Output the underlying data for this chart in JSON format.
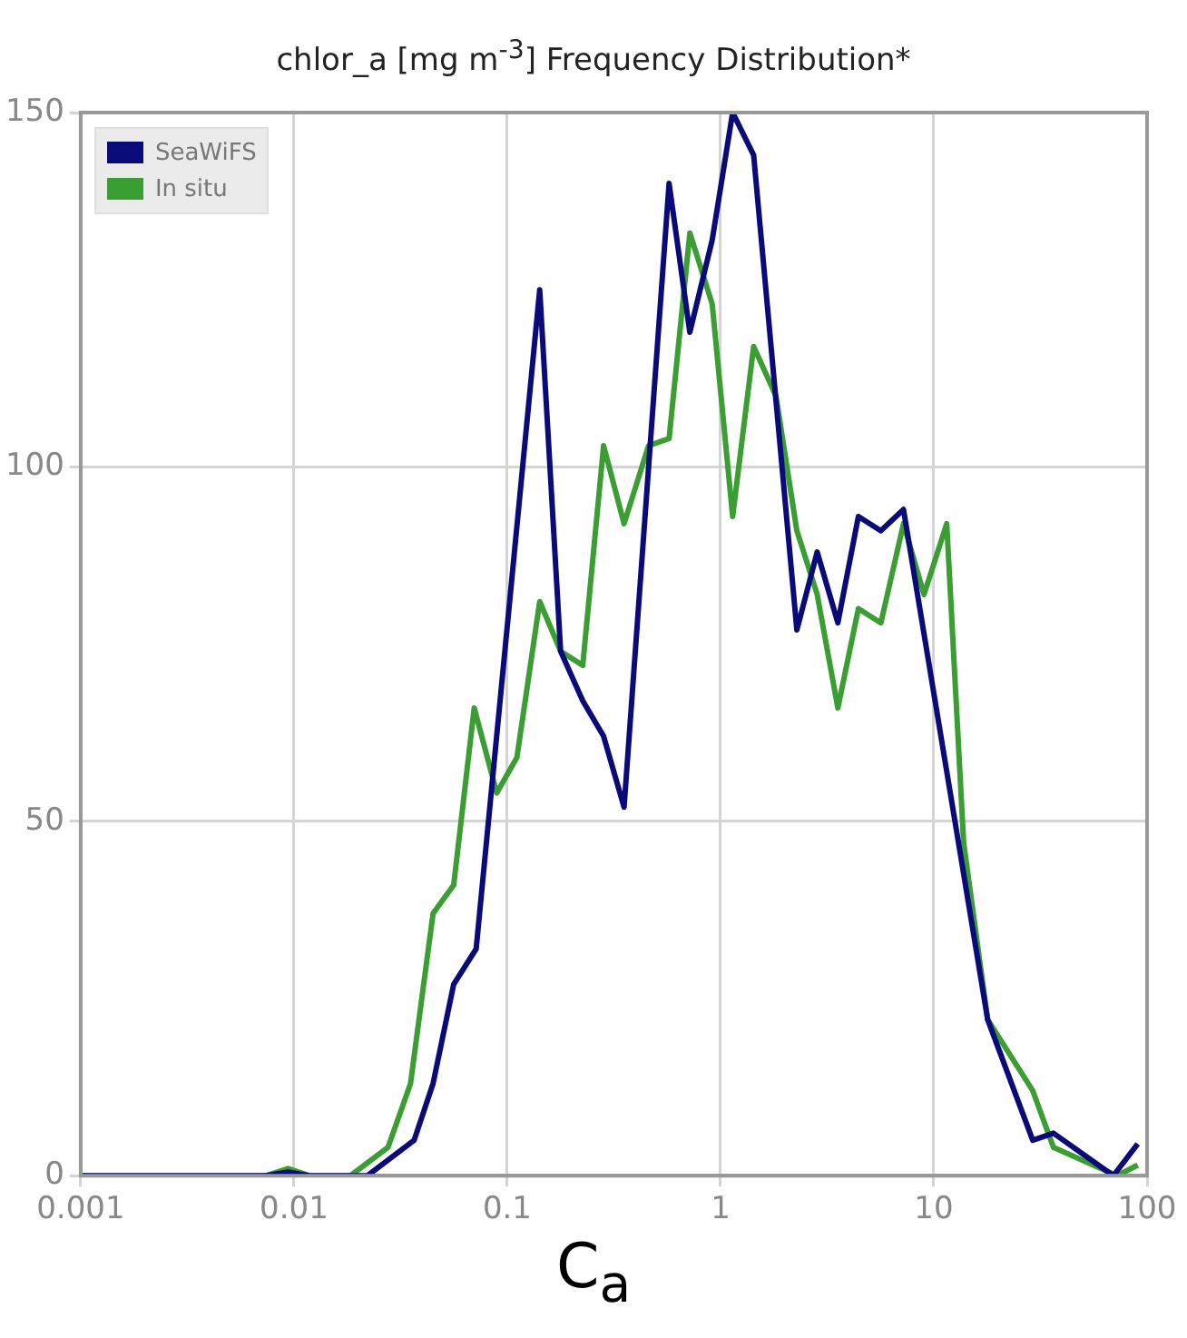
{
  "chart_data": {
    "type": "line",
    "title": "chlor_a [mg m$^{-3}$] Frequency Distribution*",
    "xlabel": "C$_{a}$",
    "log": "x",
    "xlim": [
      0.001,
      100
    ],
    "xticks": [
      0.001,
      0.01,
      0.1,
      1,
      10,
      100
    ],
    "ylim": [
      0,
      150
    ],
    "yticks": [
      0,
      50,
      100,
      150
    ],
    "grid": true,
    "legend": "top left",
    "marker": "none",
    "line_style": "solid",
    "series": [
      {
        "name": "SeaWiFS",
        "color": "#0a0a78",
        "x": [
          0.001,
          0.0074,
          0.0094,
          0.0118,
          0.0221,
          0.0366,
          0.0449,
          0.0561,
          0.0715,
          0.142,
          0.178,
          0.226,
          0.283,
          0.353,
          0.574,
          0.718,
          0.914,
          1.14,
          1.43,
          2.28,
          2.84,
          3.55,
          4.43,
          5.65,
          7.21,
          17.9,
          29.1,
          36.4,
          69.5,
          90.4
        ],
        "values": [
          0,
          0,
          0.5,
          0,
          0,
          5,
          13,
          27,
          32,
          125,
          74,
          67,
          62,
          52,
          140,
          119,
          132,
          150,
          144,
          77,
          88,
          78,
          93,
          91,
          94,
          22,
          5,
          6,
          0,
          4.5
        ]
      },
      {
        "name": "In situ",
        "color": "#3a9e32",
        "x": [
          0.001,
          0.0074,
          0.0094,
          0.0118,
          0.0184,
          0.0276,
          0.0352,
          0.0449,
          0.0561,
          0.07,
          0.0893,
          0.111,
          0.142,
          0.178,
          0.226,
          0.283,
          0.353,
          0.46,
          0.574,
          0.718,
          0.914,
          1.14,
          1.43,
          1.82,
          2.28,
          2.84,
          3.55,
          4.43,
          5.65,
          7.21,
          9.0,
          11.5,
          13.8,
          17.9,
          29.1,
          36.4,
          72.3,
          90.4
        ],
        "values": [
          0,
          0,
          1,
          0,
          0,
          4,
          13,
          37,
          41,
          66,
          54,
          59,
          81,
          74,
          72,
          103,
          92,
          103,
          104,
          133,
          123,
          93,
          117,
          110,
          91,
          82,
          66,
          80,
          78,
          92,
          82,
          92,
          47,
          22,
          12,
          4,
          0,
          1.5
        ]
      }
    ]
  }
}
